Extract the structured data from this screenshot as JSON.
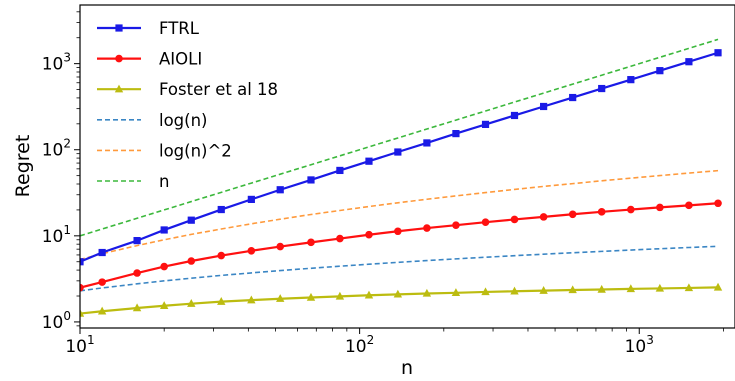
{
  "chart_data": {
    "type": "line",
    "xlabel": "n",
    "ylabel": "Regret",
    "xscale": "log",
    "yscale": "log",
    "xlim": [
      10,
      2200
    ],
    "ylim": [
      0.85,
      4800
    ],
    "x_ticks": [
      {
        "value": 10,
        "base": "10",
        "exp": "1"
      },
      {
        "value": 100,
        "base": "10",
        "exp": "2"
      },
      {
        "value": 1000,
        "base": "10",
        "exp": "3"
      }
    ],
    "y_ticks": [
      {
        "value": 1,
        "base": "10",
        "exp": "0"
      },
      {
        "value": 10,
        "base": "10",
        "exp": "1"
      },
      {
        "value": 100,
        "base": "10",
        "exp": "2"
      },
      {
        "value": 1000,
        "base": "10",
        "exp": "3"
      }
    ],
    "legend_position": "top-left",
    "grid": false,
    "x": [
      10,
      12,
      16,
      20,
      25,
      32,
      41,
      52,
      67,
      85,
      108,
      137,
      174,
      221,
      282,
      358,
      455,
      578,
      734,
      933,
      1185,
      1505,
      1913
    ],
    "series": [
      {
        "name": "FTRL",
        "color": "#1a1ae6",
        "style": "solid",
        "marker": "square",
        "values": [
          5.0,
          6.4,
          8.8,
          11.7,
          15.2,
          20.2,
          26.5,
          34.3,
          44.6,
          57.5,
          73.6,
          94.1,
          120,
          154,
          197,
          250,
          318,
          404,
          514,
          652,
          829,
          1053,
          1338
        ]
      },
      {
        "name": "AIOLI",
        "color": "#ff1010",
        "style": "solid",
        "marker": "circle",
        "values": [
          2.5,
          2.9,
          3.7,
          4.4,
          5.1,
          5.9,
          6.7,
          7.5,
          8.4,
          9.3,
          10.3,
          11.3,
          12.3,
          13.3,
          14.4,
          15.5,
          16.6,
          17.8,
          19.0,
          20.2,
          21.4,
          22.6,
          23.9
        ]
      },
      {
        "name": "Foster et al 18",
        "color": "#bcbc10",
        "style": "solid",
        "marker": "triangle",
        "values": [
          1.25,
          1.33,
          1.45,
          1.54,
          1.63,
          1.72,
          1.79,
          1.86,
          1.92,
          1.98,
          2.04,
          2.09,
          2.14,
          2.18,
          2.23,
          2.27,
          2.31,
          2.35,
          2.38,
          2.42,
          2.45,
          2.48,
          2.52
        ]
      },
      {
        "name": "log(n)",
        "color": "#3b86c4",
        "style": "dashed",
        "marker": "none",
        "values": [
          2.3,
          2.48,
          2.77,
          3.0,
          3.22,
          3.47,
          3.71,
          3.95,
          4.2,
          4.44,
          4.68,
          4.92,
          5.16,
          5.4,
          5.64,
          5.88,
          6.12,
          6.36,
          6.6,
          6.84,
          7.08,
          7.32,
          7.56
        ]
      },
      {
        "name": "log(n)^2",
        "color": "#ff9a3c",
        "style": "dashed",
        "marker": "none",
        "values": [
          5.3,
          6.2,
          7.7,
          9.0,
          10.4,
          12.0,
          13.8,
          15.6,
          17.7,
          19.7,
          21.9,
          24.2,
          26.6,
          29.1,
          31.8,
          34.6,
          37.5,
          40.4,
          43.6,
          46.8,
          50.1,
          53.6,
          57.2
        ]
      },
      {
        "name": "n",
        "color": "#3cb83c",
        "style": "dashed",
        "marker": "none",
        "values": [
          10,
          12,
          16,
          20,
          25,
          32,
          41,
          52,
          67,
          85,
          108,
          137,
          174,
          221,
          282,
          358,
          455,
          578,
          734,
          933,
          1185,
          1505,
          1913
        ]
      }
    ]
  }
}
